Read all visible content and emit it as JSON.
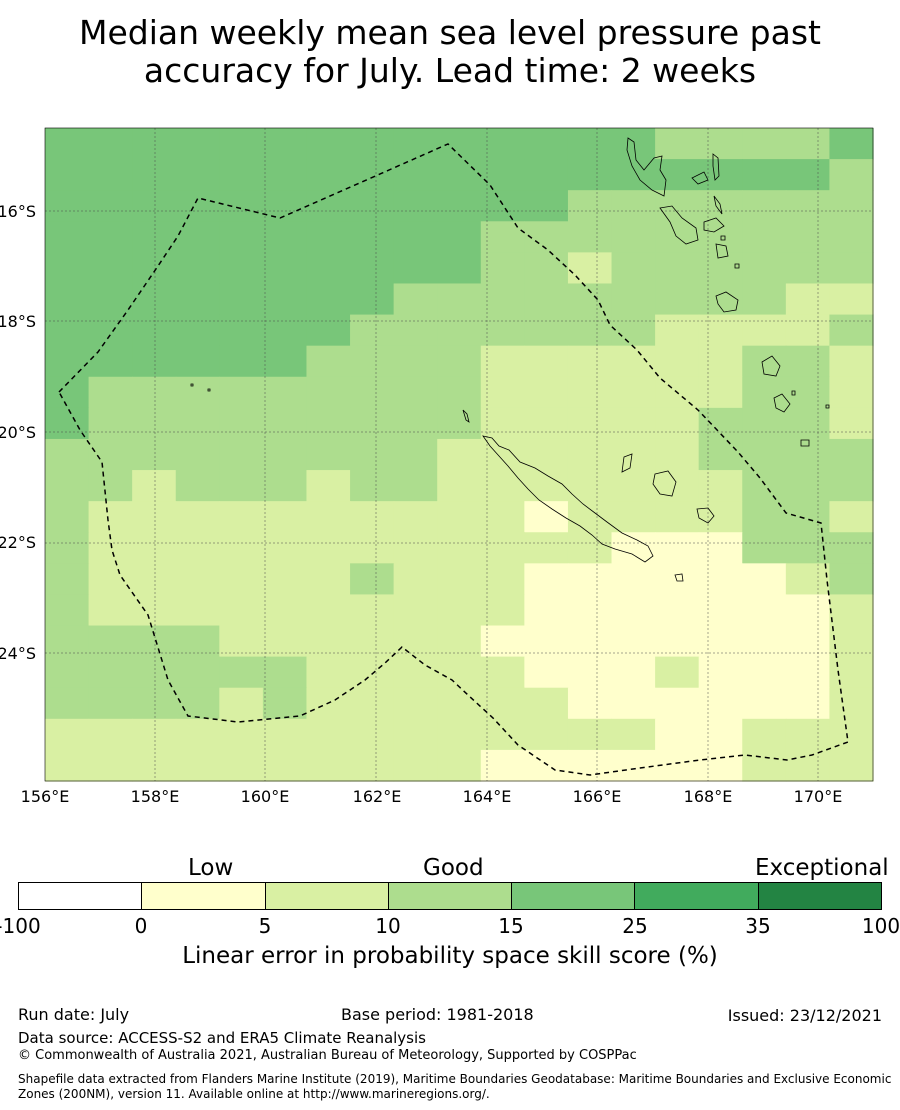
{
  "title": {
    "line1": "Median weekly mean sea level pressure past",
    "line2": "accuracy for July. Lead time: 2 weeks"
  },
  "map": {
    "lat_labels": [
      "16°S",
      "18°S",
      "20°S",
      "22°S",
      "24°S"
    ],
    "lon_labels": [
      "156°E",
      "158°E",
      "160°E",
      "162°E",
      "164°E",
      "166°E",
      "168°E",
      "170°E"
    ],
    "grid_rows": [
      "3333333333333322223",
      "3333333333333333332",
      "3333333333332222222",
      "3333333333222222222",
      "3333333333221222222",
      "3333333322222222211",
      "3333333222222211112",
      "3333332222111111221",
      "3222222222111111221",
      "3222222222111112221",
      "2222222221111112222",
      "2212221221111111222",
      "2111111111101111221",
      "2111111111111000222",
      "2111111211100000012",
      "2111111111100000001",
      "2222111111000000001",
      "2222221111100010001",
      "2222121111110000001",
      "1111111111111100111",
      "1111111111000000111"
    ],
    "category_colors": [
      "#ffffcc",
      "#d9f0a3",
      "#addd8e",
      "#78c679"
    ],
    "boundary_style": "dashed EEZ boundary (New Caledonia)"
  },
  "legend": {
    "category_labels": [
      "Low",
      "Good",
      "Exceptional"
    ],
    "tick_labels": [
      "-100",
      "0",
      "5",
      "10",
      "15",
      "25",
      "35",
      "100"
    ],
    "colors": [
      "#ffffff",
      "#ffffcc",
      "#d9f0a3",
      "#addd8e",
      "#78c679",
      "#41ab5d",
      "#238443"
    ],
    "title": "Linear error in probability space skill score (%)"
  },
  "footer": {
    "run_date": "Run date: July",
    "base_period": "Base period: 1981-2018",
    "issued": "Issued: 23/12/2021",
    "data_source": "Data source: ACCESS-S2 and ERA5 Climate Reanalysis",
    "copyright": "© Commonwealth of Australia 2021, Australian Bureau of Meteorology, Supported by COSPPac",
    "shapefile": "Shapefile data extracted from Flanders Marine Institute (2019), Maritime Boundaries Geodatabase: Maritime Boundaries and Exclusive Economic Zones (200NM), version 11. Available online at http://www.marineregions.org/."
  }
}
